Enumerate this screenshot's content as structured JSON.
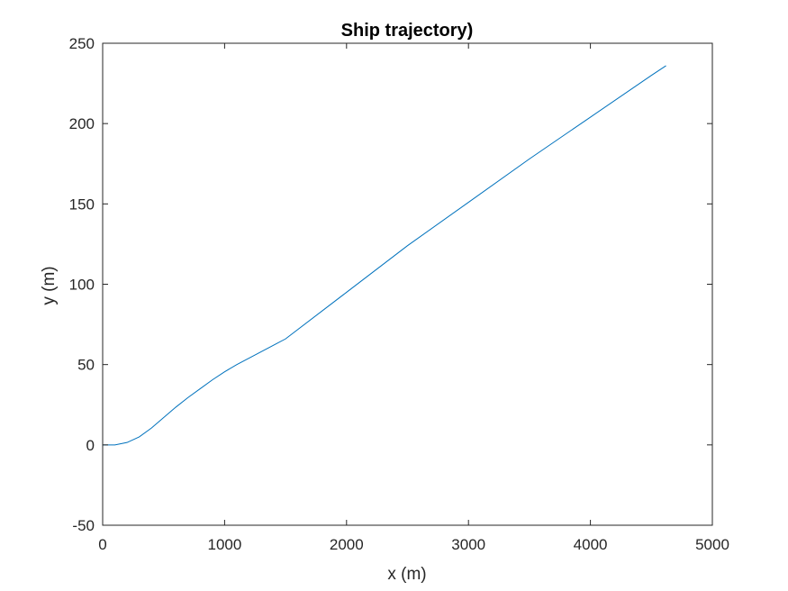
{
  "chart_data": {
    "type": "line",
    "title": "Ship trajectory)",
    "xlabel": "x (m)",
    "ylabel": "y (m)",
    "xlim": [
      0,
      5000
    ],
    "ylim": [
      -50,
      250
    ],
    "xticks": [
      "0",
      "1000",
      "2000",
      "3000",
      "4000",
      "5000"
    ],
    "yticks": [
      "-50",
      "0",
      "50",
      "100",
      "150",
      "200",
      "250"
    ],
    "grid": false,
    "legend": "none",
    "series": [
      {
        "color": "#0072BD",
        "x": [
          0,
          100,
          200,
          300,
          400,
          500,
          600,
          700,
          800,
          900,
          1000,
          1100,
          1200,
          1500,
          2000,
          2500,
          3000,
          3500,
          4000,
          4500,
          4620
        ],
        "y": [
          0,
          0,
          1.5,
          5,
          10.5,
          17,
          23.5,
          29.5,
          35,
          40.5,
          45.5,
          50,
          54,
          66,
          95,
          124,
          151,
          178,
          204,
          230,
          236
        ]
      }
    ]
  }
}
